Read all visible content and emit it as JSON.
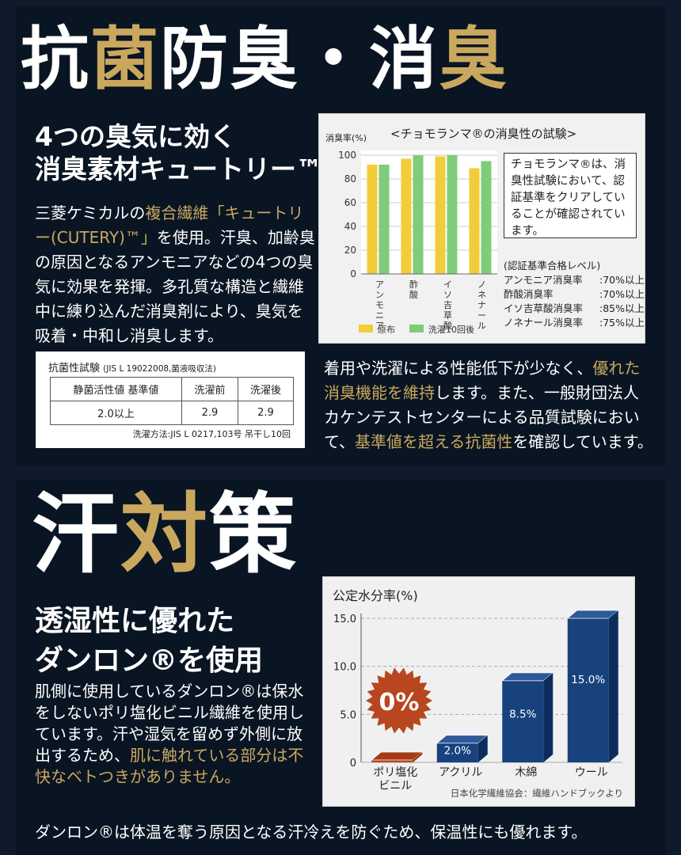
{
  "section1": {
    "title_a": "抗",
    "title_b": "菌",
    "title_c": "防臭・消",
    "title_d": "臭",
    "sub1": "4つの臭気に効く",
    "sub2": "消臭素材キュートリー™",
    "para_1": "三菱ケミカルの",
    "para_gold": "複合繊維「キュートリー(CUTERY)™」",
    "para_2": "を使用。汗臭、加齢臭の原因となるアンモニアなどの4つの臭気に効果を発揮。多孔質な構造と繊維中に練り込んだ消臭剤により、臭気を吸着・中和し消臭します。",
    "right_1": "着用や洗濯による性能低下が少なく、",
    "right_gold1": "優れた消臭機能を維持",
    "right_2": "します。また、一般財団法人カケンテストセンターによる品質試験において、",
    "right_gold2": "基準値を超える抗菌性",
    "right_3": "を確認しています。"
  },
  "chart1": {
    "title": "<チョモランマ®の消臭性の試験>",
    "ylabel": "消臭率(%)",
    "note": "チョモランマ®は、消臭性試験において、認証基準をクリアしていることが確認されています。",
    "criteria_title": "(認証基準合格レベル)",
    "criteria": [
      {
        "name": "アンモニア消臭率",
        "value": ":70%以上"
      },
      {
        "name": "酢酸消臭率",
        "value": ":70%以上"
      },
      {
        "name": "イソ吉草酸消臭率",
        "value": ":85%以上"
      },
      {
        "name": "ノネナール消臭率",
        "value": ":75%以上"
      }
    ],
    "legend_a": "原布",
    "legend_b": "洗濯10回後"
  },
  "ab_table": {
    "title": "抗菌性試験",
    "title_small": "(JIS L 19022008,菌液吸収法)",
    "headers": [
      "静菌活性値 基準値",
      "洗濯前",
      "洗濯後"
    ],
    "row": [
      "2.0以上",
      "2.9",
      "2.9"
    ],
    "footnote": "洗濯方法:JIS L 0217,103号 吊干し10回"
  },
  "section2": {
    "title_a": "汗",
    "title_b": "対",
    "title_c": "策",
    "sub1": "透湿性に優れた",
    "sub2": "ダンロン®を使用",
    "para_1": "肌側に使用しているダンロン®は保水をしないポリ塩化ビニル繊維を使用しています。汗や湿気を留めず外側に放出するため、",
    "para_gold": "肌に触れている部分は不快なベトつきがありません。",
    "bottom_line": "ダンロン®は体温を奪う原因となる汗冷えを防ぐため、保温性にも優れます。"
  },
  "chart2": {
    "title": "公定水分率(%)",
    "source": "日本化学繊維協会：繊維ハンドブックより",
    "badge": "0%"
  },
  "colors": {
    "gold": "#c9a85e",
    "bar_yellow": "#f2cc3a",
    "bar_green": "#7fcc7a",
    "bar_blue": "#17427e",
    "badge_red": "#b8461f"
  },
  "chart_data": [
    {
      "type": "bar",
      "title": "<チョモランマ®の消臭性の試験>",
      "ylabel": "消臭率(%)",
      "ylim": [
        0,
        100
      ],
      "yticks": [
        0,
        20,
        40,
        60,
        80,
        100
      ],
      "categories": [
        "アンモニア",
        "酢酸",
        "イソ吉草酸",
        "ノネナール"
      ],
      "series": [
        {
          "name": "原布",
          "values": [
            92,
            97,
            99,
            89
          ]
        },
        {
          "name": "洗濯10回後",
          "values": [
            92,
            100,
            100,
            95
          ]
        }
      ],
      "legend": "bottom"
    },
    {
      "type": "bar",
      "title": "公定水分率(%)",
      "ylim": [
        0,
        15
      ],
      "yticks": [
        "0",
        "5.0",
        "10.0",
        "15.0"
      ],
      "categories": [
        "ポリ塩化ビニル",
        "アクリル",
        "木綿",
        "ウール"
      ],
      "values": [
        0,
        2.0,
        8.5,
        15.0
      ],
      "labels": [
        "",
        "2.0%",
        "8.5%",
        "15.0%"
      ]
    }
  ]
}
